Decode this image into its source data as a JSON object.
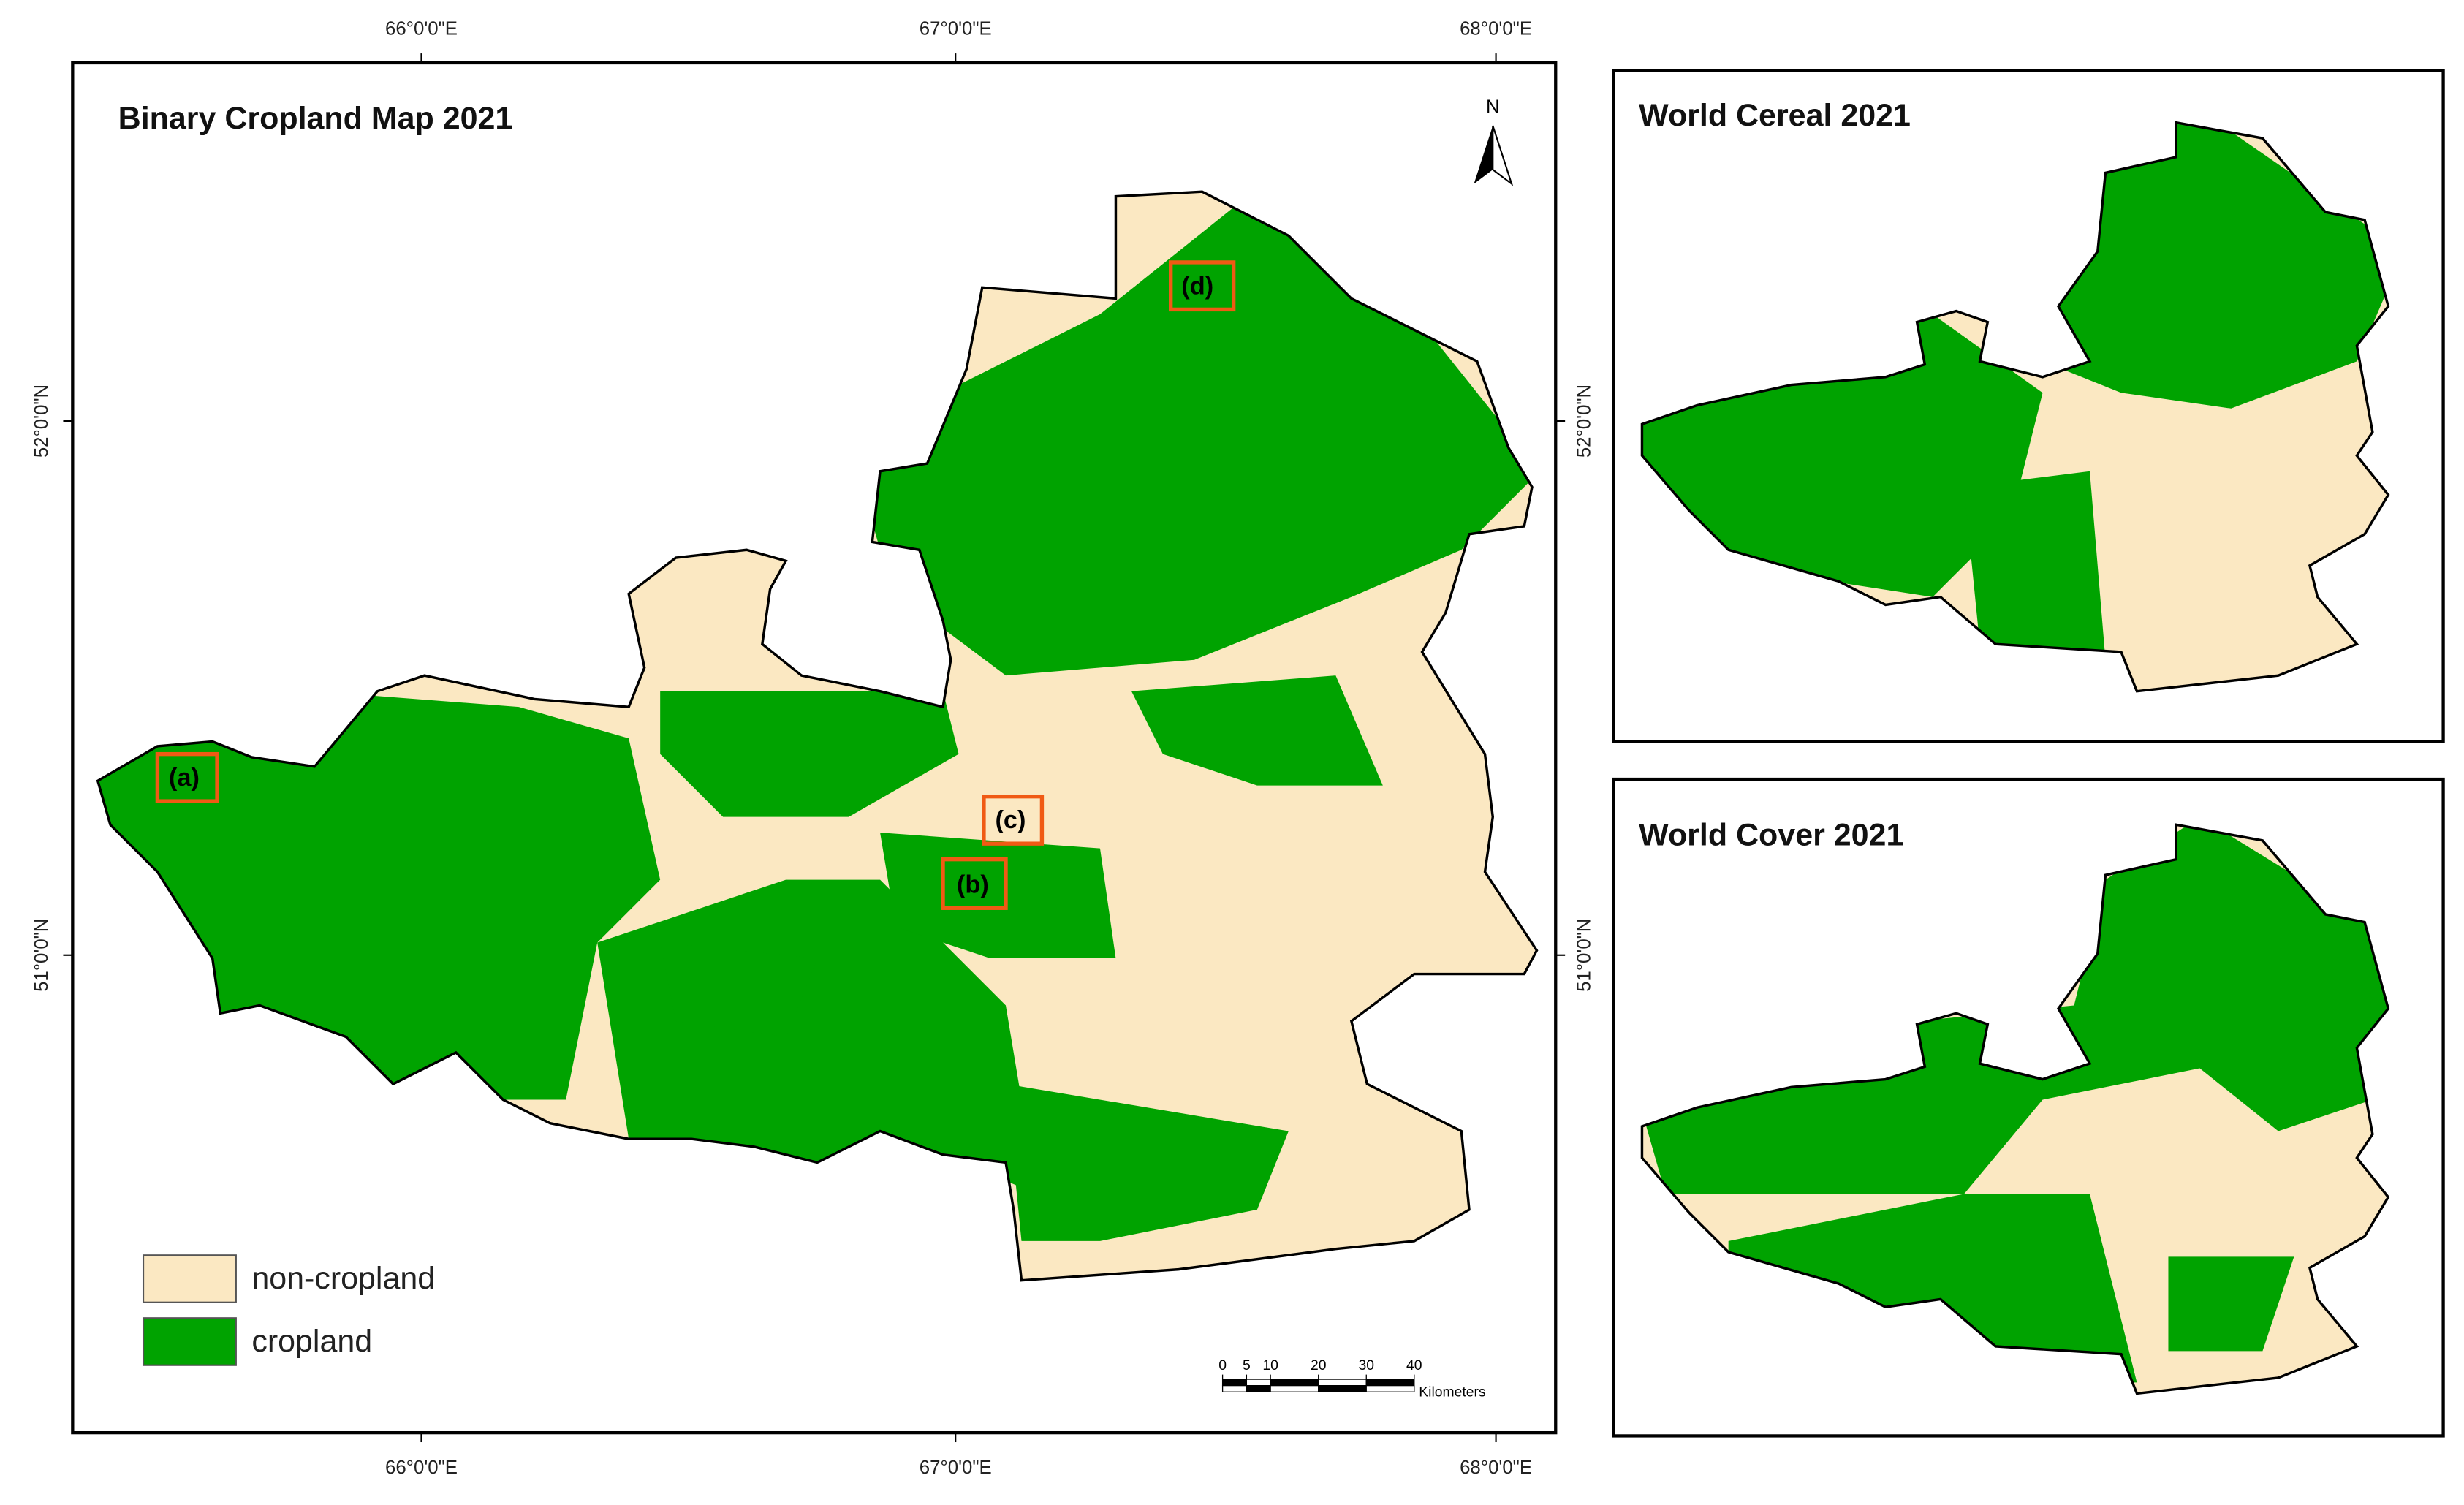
{
  "main_map": {
    "title": "Binary Cropland Map 2021",
    "north": "N",
    "legend": [
      {
        "label": "non-cropland",
        "color": "#fbe8c2"
      },
      {
        "label": "cropland",
        "color": "#00a300"
      }
    ],
    "sites": [
      "(a)",
      "(b)",
      "(c)",
      "(d)"
    ],
    "scale_bar": {
      "ticks": [
        0,
        5,
        10,
        20,
        30,
        40
      ],
      "unit": "Kilometers"
    }
  },
  "graticule": {
    "longitudes": [
      "66°0'0\"E",
      "67°0'0\"E",
      "68°0'0\"E"
    ],
    "latitudes": [
      "52°0'0\"N",
      "51°0'0\"N"
    ]
  },
  "insets": [
    {
      "title": "World Cereal 2021"
    },
    {
      "title": "World Cover 2021"
    }
  ]
}
